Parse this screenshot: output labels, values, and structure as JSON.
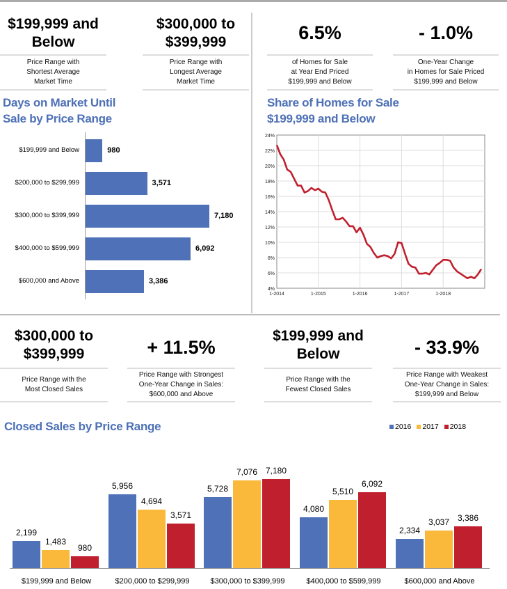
{
  "stats_top": [
    {
      "value": "$199,999 and Below",
      "caption": [
        "Price Range with",
        "Shortest Average",
        "Market Time"
      ]
    },
    {
      "value": "$300,000 to $399,999",
      "caption": [
        "Price Range with",
        "Longest Average",
        "Market Time"
      ]
    },
    {
      "value": "6.5%",
      "caption": [
        "of Homes for Sale",
        "at Year End Priced",
        "$199,999 and Below"
      ]
    },
    {
      "value": "- 1.0%",
      "caption": [
        "One-Year Change",
        "in Homes for Sale Priced",
        "$199,999 and Below"
      ]
    }
  ],
  "stats_bottom": [
    {
      "value": "$300,000 to $399,999",
      "caption": [
        "Price Range with the",
        "Most Closed Sales"
      ]
    },
    {
      "value": "+ 11.5%",
      "caption": [
        "Price Range with Strongest",
        "One-Year Change in Sales:",
        "$600,000 and Above"
      ]
    },
    {
      "value": "$199,999 and Below",
      "caption": [
        "Price Range with the",
        "Fewest Closed Sales"
      ]
    },
    {
      "value": "- 33.9%",
      "caption": [
        "Price Range with Weakest",
        "One-Year Change in Sales:",
        "$199,999 and Below"
      ]
    }
  ],
  "chart_data": [
    {
      "type": "bar",
      "orientation": "horizontal",
      "title": "Days on Market Until Sale by Price Range",
      "categories": [
        "$199,999 and Below",
        "$200,000 to $299,999",
        "$300,000 to $399,999",
        "$400,000 to $599,999",
        "$600,000 and Above"
      ],
      "values": [
        980,
        3571,
        7180,
        6092,
        3386
      ],
      "labels": [
        "980",
        "3,571",
        "7,180",
        "6,092",
        "3,386"
      ],
      "color": "#4f71b8"
    },
    {
      "type": "line",
      "title": "Share of Homes for Sale $199,999 and Below",
      "ylim": [
        4,
        24
      ],
      "yticks": [
        "4%",
        "6%",
        "8%",
        "10%",
        "12%",
        "14%",
        "16%",
        "18%",
        "20%",
        "22%",
        "24%"
      ],
      "xticks": [
        "1-2014",
        "1-2015",
        "1-2016",
        "1-2017",
        "1-2018"
      ],
      "grid": true,
      "color": "#c0202e",
      "start": "1-2014",
      "frequency": "monthly",
      "values": [
        22.7,
        21.5,
        20.8,
        19.5,
        19.2,
        18.3,
        17.4,
        17.4,
        16.5,
        16.7,
        17.1,
        16.8,
        17.0,
        16.6,
        16.5,
        15.5,
        14.2,
        13.0,
        13.0,
        13.2,
        12.7,
        12.1,
        12.1,
        11.3,
        11.9,
        11.0,
        9.8,
        9.4,
        8.6,
        8.0,
        8.2,
        8.3,
        8.2,
        7.9,
        8.5,
        10.0,
        9.9,
        8.5,
        7.2,
        6.8,
        6.7,
        5.9,
        5.9,
        6.0,
        5.8,
        6.4,
        7.0,
        7.3,
        7.7,
        7.7,
        7.6,
        6.7,
        6.2,
        5.9,
        5.6,
        5.3,
        5.5,
        5.3,
        5.8,
        6.5
      ]
    },
    {
      "type": "bar",
      "title": "Closed Sales by Price Range",
      "legend_position": "top-right",
      "categories": [
        "$199,999 and Below",
        "$200,000 to $299,999",
        "$300,000 to $399,999",
        "$400,000 to $599,999",
        "$600,000 and Above"
      ],
      "series": [
        {
          "name": "2016",
          "color": "#4f71b8",
          "values": [
            2199,
            5956,
            5728,
            4080,
            2334
          ],
          "labels": [
            "2,199",
            "5,956",
            "5,728",
            "4,080",
            "2,334"
          ]
        },
        {
          "name": "2017",
          "color": "#fbb93c",
          "values": [
            1483,
            4694,
            7076,
            5510,
            3037
          ],
          "labels": [
            "1,483",
            "4,694",
            "7,076",
            "5,510",
            "3,037"
          ]
        },
        {
          "name": "2018",
          "color": "#c0202e",
          "values": [
            980,
            3571,
            7180,
            6092,
            3386
          ],
          "labels": [
            "980",
            "3,571",
            "7,180",
            "6,092",
            "3,386"
          ]
        }
      ]
    }
  ]
}
